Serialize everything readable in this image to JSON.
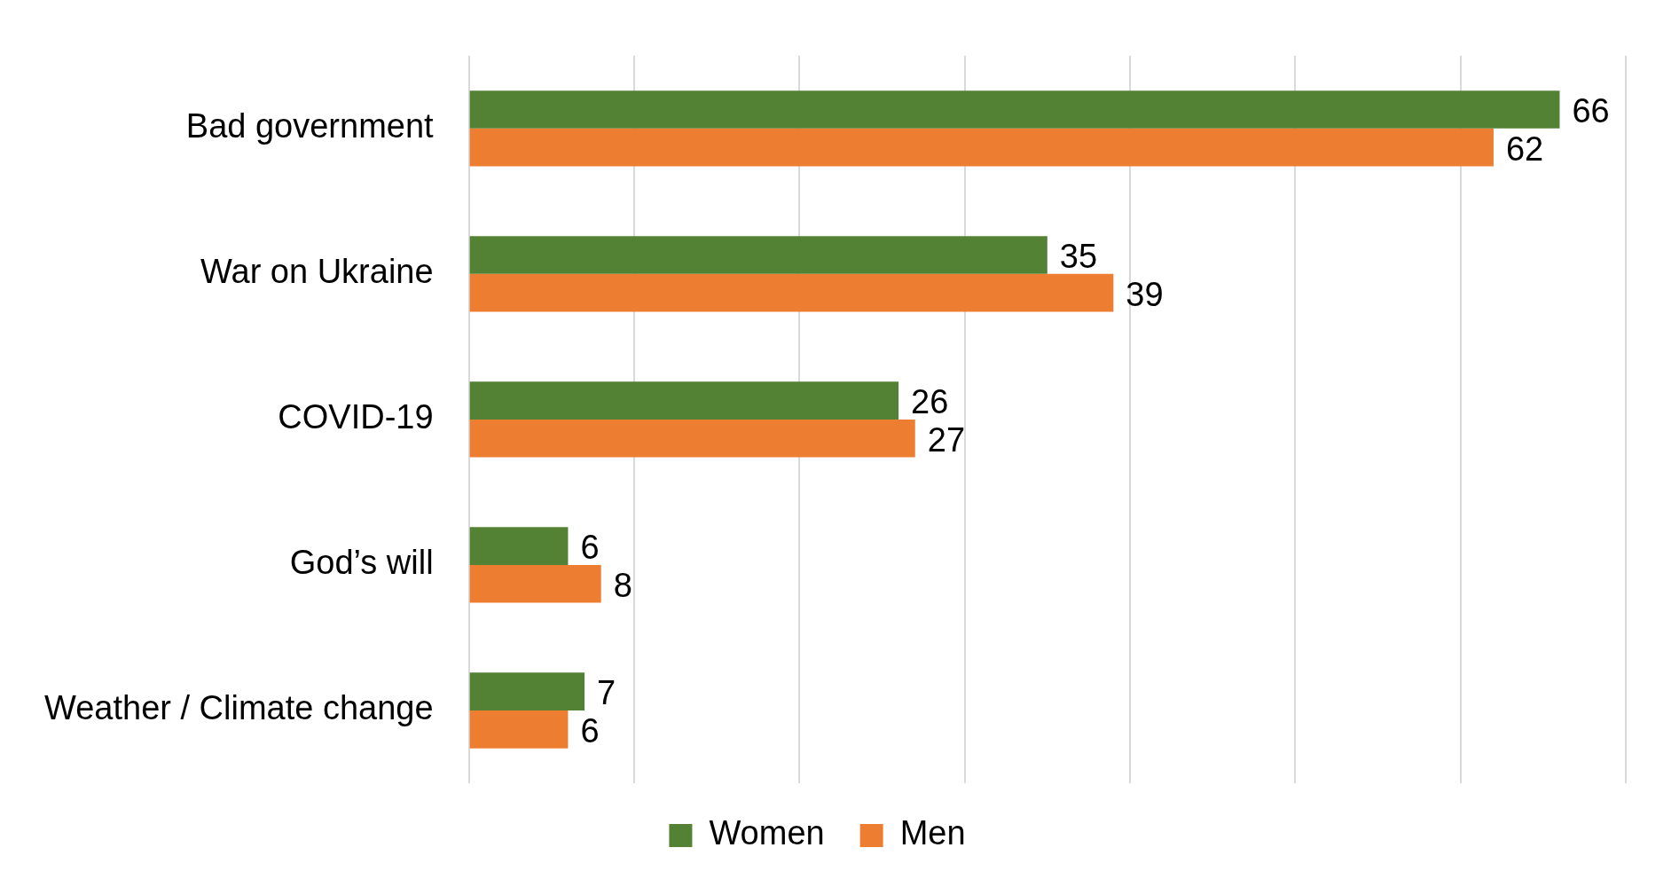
{
  "chart_data": {
    "type": "bar",
    "orientation": "horizontal",
    "categories": [
      "Bad government",
      "War on Ukraine",
      "COVID-19",
      "God’s will",
      "Weather / Climate change"
    ],
    "series": [
      {
        "name": "Women",
        "color": "#548235",
        "values": [
          66,
          35,
          26,
          6,
          7
        ]
      },
      {
        "name": "Men",
        "color": "#ed7d31",
        "values": [
          62,
          39,
          27,
          8,
          6
        ]
      }
    ],
    "xlim": [
      0,
      70
    ],
    "xticks": [
      {
        "value": 0,
        "label": null
      },
      {
        "value": 10,
        "label": null
      },
      {
        "value": 20,
        "label": null
      },
      {
        "value": 30,
        "label": null
      },
      {
        "value": 40,
        "label": null
      },
      {
        "value": 50,
        "label": null
      },
      {
        "value": 60,
        "label": null
      },
      {
        "value": 70,
        "label": null
      }
    ],
    "tick_labels": "y",
    "grid": "x",
    "legend": "bottom",
    "data_labels": true
  }
}
